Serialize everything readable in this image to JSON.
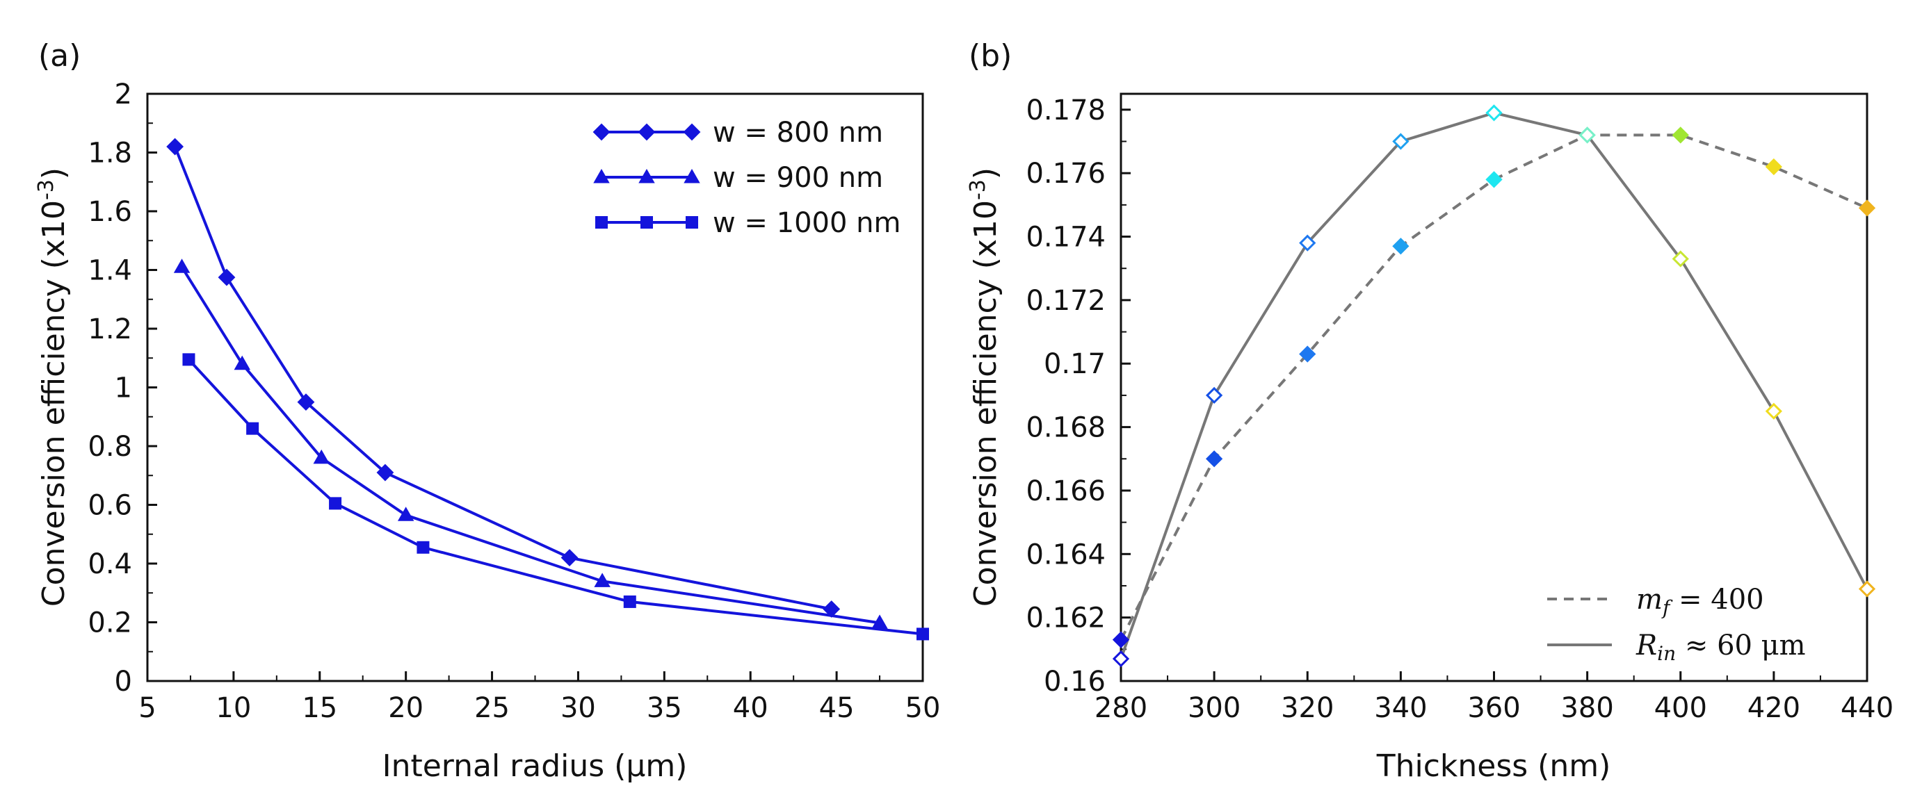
{
  "chart_data": [
    {
      "type": "line",
      "panel_label": "(a)",
      "title": "",
      "xlabel": "Internal radius (μm)",
      "ylabel": "Conversion efficiency (x10",
      "ylabel_exp": "-3",
      "ylabel_close": ")",
      "xlim": [
        5,
        50
      ],
      "ylim": [
        0,
        2
      ],
      "xticks": [
        "5",
        "10",
        "15",
        "20",
        "25",
        "30",
        "35",
        "40",
        "45",
        "50"
      ],
      "yticks": [
        "0",
        "0.2",
        "0.4",
        "0.6",
        "0.8",
        "1",
        "1.2",
        "1.4",
        "1.6",
        "1.8",
        "2"
      ],
      "legend_position": "top-right",
      "color": "#1414dc",
      "series": [
        {
          "name": "w = 800 nm",
          "marker": "diamond",
          "x": [
            6.6,
            9.6,
            14.2,
            18.8,
            29.5,
            44.7
          ],
          "y": [
            1.82,
            1.375,
            0.95,
            0.71,
            0.42,
            0.245
          ]
        },
        {
          "name": "w = 900 nm",
          "marker": "triangle",
          "x": [
            7.0,
            10.5,
            15.1,
            20.0,
            31.4,
            47.5
          ],
          "y": [
            1.41,
            1.08,
            0.76,
            0.565,
            0.34,
            0.198
          ]
        },
        {
          "name": "w = 1000 nm",
          "marker": "square",
          "x": [
            7.4,
            11.1,
            15.9,
            21.0,
            33.0,
            50.0
          ],
          "y": [
            1.095,
            0.86,
            0.605,
            0.455,
            0.27,
            0.16
          ]
        }
      ]
    },
    {
      "type": "line",
      "panel_label": "(b)",
      "title": "",
      "xlabel": "Thickness (nm)",
      "ylabel": "Conversion efficiency (x10",
      "ylabel_exp": "-3",
      "ylabel_close": ")",
      "xlim": [
        280,
        440
      ],
      "ylim": [
        0.16,
        0.1785
      ],
      "xticks": [
        "280",
        "300",
        "320",
        "340",
        "360",
        "380",
        "400",
        "420",
        "440"
      ],
      "yticks": [
        "0.16",
        "0.162",
        "0.164",
        "0.166",
        "0.168",
        "0.17",
        "0.172",
        "0.174",
        "0.176",
        "0.178"
      ],
      "legend_position": "bottom-right",
      "line_color": "#777777",
      "series": [
        {
          "name": "m_f = 400",
          "style": "dashed",
          "marker": "filled-diamond",
          "x": [
            280,
            300,
            320,
            340,
            360,
            380,
            400,
            420,
            440
          ],
          "y": [
            0.1613,
            0.167,
            0.1703,
            0.1737,
            0.1758,
            0.1772,
            0.1772,
            0.1762,
            0.1749
          ],
          "marker_colors": [
            "#1414dc",
            "#1450e6",
            "#1e78f0",
            "#1ea0f0",
            "#1ee6f0",
            "#78f0c8",
            "#a0e632",
            "#f0dc1e",
            "#f0b41e"
          ]
        },
        {
          "name": "R_in ≈ 60 μm",
          "style": "solid",
          "marker": "open-diamond",
          "x": [
            280,
            300,
            320,
            340,
            360,
            380,
            400,
            420,
            440
          ],
          "y": [
            0.1607,
            0.169,
            0.1738,
            0.177,
            0.1779,
            0.1772,
            0.1733,
            0.1685,
            0.1629
          ],
          "marker_colors": [
            "#1414dc",
            "#1450e6",
            "#1e78f0",
            "#1ea0f0",
            "#1ee6f0",
            "#78f0c8",
            "#c8e632",
            "#f0dc1e",
            "#f0b41e"
          ]
        }
      ],
      "legend": {
        "dashed_lhs": "m",
        "dashed_sub": "f",
        "dashed_rhs": " = 400",
        "solid_lhs": "R",
        "solid_sub": "in",
        "solid_rhs": " ≈ 60 μm"
      }
    }
  ]
}
